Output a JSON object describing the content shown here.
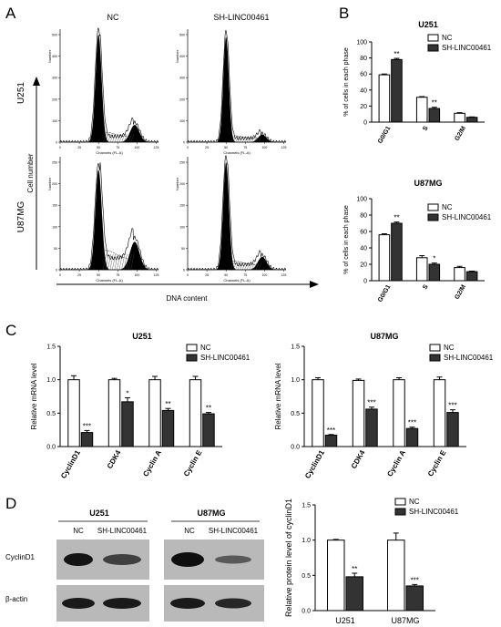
{
  "panels": {
    "A": {
      "letter": "A",
      "col_nc": "NC",
      "col_sh": "SH-LINC00461",
      "row1": "U251",
      "row2": "U87MG",
      "y_axis": "Cell number",
      "x_axis": "DNA content",
      "hist_ylabel": "Number",
      "hist_xlabel": "Channels (FL-A)",
      "x_ticks": [
        "0",
        "25",
        "50",
        "75",
        "100",
        "125"
      ],
      "y_ticks_u251": [
        "0",
        "100",
        "200",
        "300",
        "400",
        "500"
      ],
      "y_ticks_u87": [
        "0",
        "50",
        "100",
        "150",
        "200",
        "250"
      ]
    },
    "B": {
      "letter": "B"
    },
    "C": {
      "letter": "C"
    },
    "D": {
      "letter": "D",
      "u251": "U251",
      "u87": "U87MG",
      "nc": "NC",
      "sh": "SH-LINC00461",
      "row1": "CyclinD1",
      "row2": "β-actin"
    }
  },
  "legend": {
    "nc": "NC",
    "sh": "SH-LINC00461"
  },
  "colors": {
    "nc": "#ffffff",
    "sh": "#333333",
    "stroke": "#000000"
  },
  "chart_data": [
    {
      "id": "B1",
      "type": "bar",
      "title": "U251",
      "ylabel": "% of cells in each phase",
      "categories": [
        "G0/G1",
        "S",
        "G2/M"
      ],
      "ylim": [
        0,
        100
      ],
      "yticks": [
        "0",
        "20",
        "40",
        "60",
        "80",
        "100"
      ],
      "series": [
        {
          "name": "NC",
          "values": [
            59,
            31,
            11
          ],
          "errors": [
            1,
            0.8,
            0.8
          ]
        },
        {
          "name": "SH-LINC00461",
          "values": [
            78,
            17,
            6
          ],
          "errors": [
            1.5,
            1.5,
            0.5
          ]
        }
      ],
      "annotations": [
        {
          "group": 0,
          "text": "**"
        },
        {
          "group": 1,
          "text": "**"
        }
      ]
    },
    {
      "id": "B2",
      "type": "bar",
      "title": "U87MG",
      "ylabel": "% of cells in each phase",
      "categories": [
        "G0/G1",
        "S",
        "G2/M"
      ],
      "ylim": [
        0,
        100
      ],
      "yticks": [
        "0",
        "20",
        "40",
        "60",
        "80",
        "100"
      ],
      "series": [
        {
          "name": "NC",
          "values": [
            56,
            28,
            16
          ],
          "errors": [
            1.2,
            2.5,
            1.5
          ]
        },
        {
          "name": "SH-LINC00461",
          "values": [
            70,
            20,
            11
          ],
          "errors": [
            1.5,
            1.5,
            0.7
          ]
        }
      ],
      "annotations": [
        {
          "group": 0,
          "text": "**"
        },
        {
          "group": 1,
          "text": "*"
        }
      ]
    },
    {
      "id": "C1",
      "type": "bar",
      "title": "U251",
      "ylabel": "Relative mRNA level",
      "categories": [
        "CyclinD1",
        "CDK4",
        "Cyclin A",
        "Cyclin E"
      ],
      "ylim": [
        0,
        1.5
      ],
      "yticks": [
        "0.0",
        "0.5",
        "1.0",
        "1.5"
      ],
      "series": [
        {
          "name": "NC",
          "values": [
            1.0,
            1.0,
            1.0,
            1.0
          ],
          "errors": [
            0.06,
            0.02,
            0.05,
            0.05
          ]
        },
        {
          "name": "SH-LINC00461",
          "values": [
            0.21,
            0.67,
            0.54,
            0.49
          ],
          "errors": [
            0.03,
            0.06,
            0.03,
            0.02
          ]
        }
      ],
      "annotations": [
        {
          "group": 0,
          "text": "***"
        },
        {
          "group": 1,
          "text": "*"
        },
        {
          "group": 2,
          "text": "**"
        },
        {
          "group": 3,
          "text": "**"
        }
      ]
    },
    {
      "id": "C2",
      "type": "bar",
      "title": "U87MG",
      "ylabel": "Relative mRNA level",
      "categories": [
        "CyclinD1",
        "CDK4",
        "Cyclin A",
        "Cyclin E"
      ],
      "ylim": [
        0,
        1.5
      ],
      "yticks": [
        "0.0",
        "0.5",
        "1.0",
        "1.5"
      ],
      "series": [
        {
          "name": "NC",
          "values": [
            1.0,
            0.99,
            1.0,
            1.0
          ],
          "errors": [
            0.03,
            0.02,
            0.03,
            0.04
          ]
        },
        {
          "name": "SH-LINC00461",
          "values": [
            0.17,
            0.56,
            0.27,
            0.51
          ],
          "errors": [
            0.01,
            0.03,
            0.02,
            0.04
          ]
        }
      ],
      "annotations": [
        {
          "group": 0,
          "text": "***"
        },
        {
          "group": 1,
          "text": "***"
        },
        {
          "group": 2,
          "text": "***"
        },
        {
          "group": 3,
          "text": "***"
        }
      ]
    },
    {
      "id": "D1",
      "type": "bar",
      "title": "",
      "ylabel": "Relative protein level of cyclinD1",
      "categories": [
        "U251",
        "U87MG"
      ],
      "ylim": [
        0,
        1.5
      ],
      "yticks": [
        "0.0",
        "0.5",
        "1.0",
        "1.5"
      ],
      "series": [
        {
          "name": "NC",
          "values": [
            1.0,
            1.0
          ],
          "errors": [
            0.01,
            0.1
          ]
        },
        {
          "name": "SH-LINC00461",
          "values": [
            0.48,
            0.35
          ],
          "errors": [
            0.05,
            0.02
          ]
        }
      ],
      "annotations": [
        {
          "group": 0,
          "text": "**"
        },
        {
          "group": 1,
          "text": "***"
        }
      ]
    }
  ]
}
